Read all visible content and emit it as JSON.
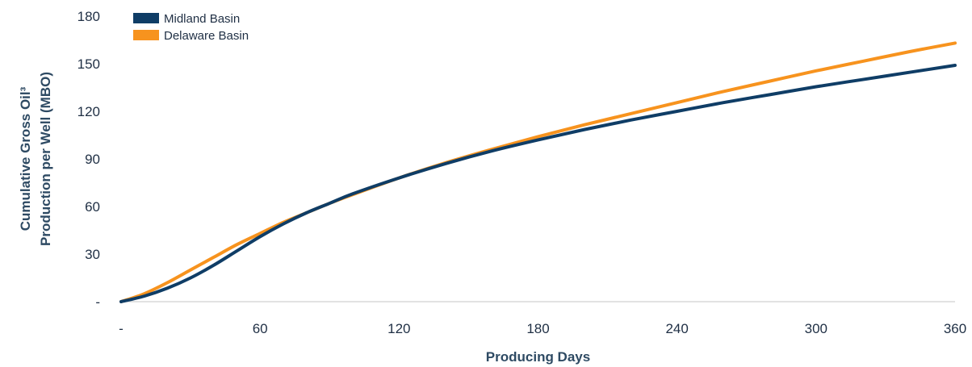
{
  "chart_data": {
    "type": "line",
    "title": "",
    "xlabel": "Producing Days",
    "ylabel_lines": [
      "Cumulative Gross Oil³",
      "Production per Well (MBO)"
    ],
    "x_ticks": [
      {
        "value": 0,
        "label": "-"
      },
      {
        "value": 60,
        "label": "60"
      },
      {
        "value": 120,
        "label": "120"
      },
      {
        "value": 180,
        "label": "180"
      },
      {
        "value": 240,
        "label": "240"
      },
      {
        "value": 300,
        "label": "300"
      },
      {
        "value": 360,
        "label": "360"
      }
    ],
    "y_ticks": [
      {
        "value": 0,
        "label": "-"
      },
      {
        "value": 30,
        "label": "30"
      },
      {
        "value": 60,
        "label": "60"
      },
      {
        "value": 90,
        "label": "90"
      },
      {
        "value": 120,
        "label": "120"
      },
      {
        "value": 150,
        "label": "150"
      },
      {
        "value": 180,
        "label": "180"
      }
    ],
    "xlim": [
      0,
      360
    ],
    "ylim": [
      0,
      180
    ],
    "grid": false,
    "legend_position": "top-left",
    "series": [
      {
        "name": "Midland Basin",
        "color": "#0f3d66",
        "x": [
          0,
          10,
          20,
          30,
          40,
          50,
          60,
          70,
          80,
          90,
          100,
          120,
          140,
          160,
          180,
          200,
          220,
          240,
          260,
          280,
          300,
          320,
          340,
          360
        ],
        "y": [
          0,
          3.5,
          8.5,
          15,
          23,
          32,
          41,
          49,
          56,
          62,
          68,
          78,
          87,
          95,
          102,
          108.5,
          114.5,
          120,
          125.5,
          130.5,
          135.5,
          140,
          144.5,
          149
        ]
      },
      {
        "name": "Delaware Basin",
        "color": "#f7931e",
        "x": [
          0,
          10,
          20,
          30,
          40,
          50,
          60,
          70,
          80,
          90,
          100,
          120,
          140,
          160,
          180,
          200,
          220,
          240,
          260,
          280,
          300,
          320,
          340,
          360
        ],
        "y": [
          0,
          5,
          12,
          20,
          28,
          36,
          43,
          50,
          56,
          62,
          67.5,
          78,
          87.5,
          96,
          104,
          111.5,
          118.5,
          125.5,
          132.5,
          139,
          145.5,
          151.5,
          157.5,
          163
        ]
      }
    ]
  }
}
